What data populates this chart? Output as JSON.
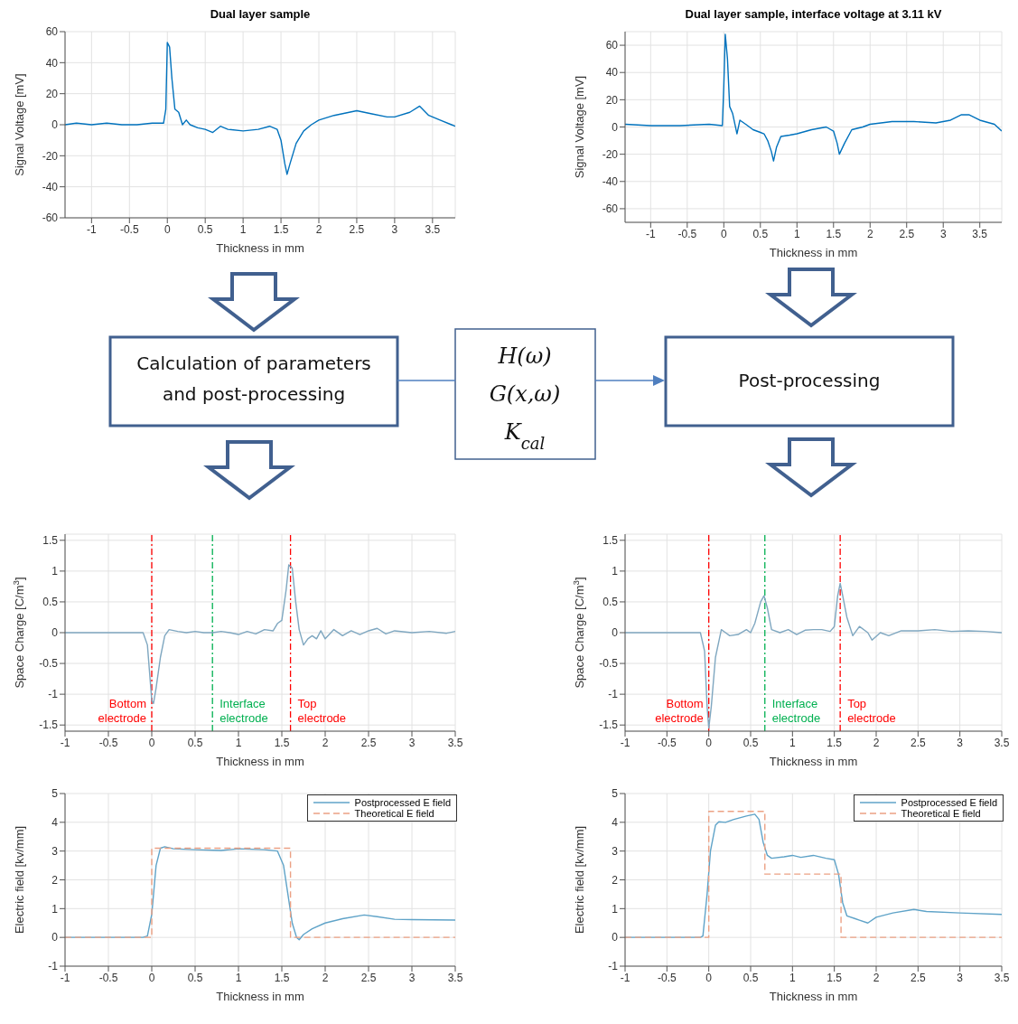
{
  "chart_data": [
    {
      "type": "line",
      "title": "Dual layer sample",
      "xlabel": "Thickness in mm",
      "ylabel": "Signal Voltage [mV]",
      "xlim": [
        -1.35,
        3.8
      ],
      "ylim": [
        -60,
        60
      ],
      "xticks": [
        -1,
        -0.5,
        0,
        0.5,
        1,
        1.5,
        2,
        2.5,
        3,
        3.5
      ],
      "yticks": [
        -60,
        -40,
        -20,
        0,
        20,
        40,
        60
      ],
      "grid": true,
      "x": [
        -1.35,
        -1.2,
        -1.0,
        -0.8,
        -0.6,
        -0.4,
        -0.2,
        -0.05,
        -0.02,
        0,
        0.03,
        0.06,
        0.1,
        0.15,
        0.2,
        0.25,
        0.3,
        0.4,
        0.5,
        0.6,
        0.7,
        0.8,
        1.0,
        1.2,
        1.35,
        1.45,
        1.5,
        1.55,
        1.58,
        1.62,
        1.7,
        1.8,
        1.9,
        2.0,
        2.2,
        2.5,
        2.7,
        2.9,
        3.0,
        3.2,
        3.33,
        3.45,
        3.6,
        3.75,
        3.8
      ],
      "series": [
        {
          "color": "#0072bd",
          "values": [
            0,
            1,
            0,
            1,
            0,
            0,
            1,
            1,
            10,
            53,
            50,
            30,
            10,
            8,
            0,
            3,
            0,
            -2,
            -3,
            -5,
            -1,
            -3,
            -4,
            -3,
            -1,
            -3,
            -10,
            -25,
            -32,
            -25,
            -12,
            -4,
            0,
            3,
            6,
            9,
            7,
            5,
            5,
            8,
            12,
            6,
            3,
            0,
            -1
          ]
        }
      ]
    },
    {
      "type": "line",
      "title": "Dual layer sample, interface voltage at 3.11 kV",
      "xlabel": "Thickness in mm",
      "ylabel": "Signal Voltage [mV]",
      "xlim": [
        -1.35,
        3.8
      ],
      "ylim": [
        -70,
        70
      ],
      "xticks": [
        -1,
        -0.5,
        0,
        0.5,
        1,
        1.5,
        2,
        2.5,
        3,
        3.5
      ],
      "yticks": [
        -60,
        -40,
        -20,
        0,
        20,
        40,
        60
      ],
      "grid": true,
      "x": [
        -1.35,
        -1.0,
        -0.6,
        -0.2,
        -0.02,
        0,
        0.02,
        0.05,
        0.08,
        0.12,
        0.18,
        0.22,
        0.3,
        0.4,
        0.5,
        0.55,
        0.6,
        0.65,
        0.68,
        0.72,
        0.78,
        0.9,
        1.0,
        1.2,
        1.4,
        1.5,
        1.55,
        1.58,
        1.65,
        1.75,
        1.9,
        2.0,
        2.3,
        2.6,
        2.9,
        3.1,
        3.25,
        3.35,
        3.5,
        3.7,
        3.8
      ],
      "series": [
        {
          "color": "#0072bd",
          "values": [
            2,
            1,
            1,
            2,
            1,
            30,
            68,
            50,
            15,
            10,
            -5,
            5,
            2,
            -2,
            -4,
            -5,
            -10,
            -18,
            -25,
            -15,
            -7,
            -6,
            -5,
            -2,
            0,
            -3,
            -12,
            -20,
            -12,
            -2,
            0,
            2,
            4,
            4,
            3,
            5,
            9,
            9,
            5,
            2,
            -3
          ]
        }
      ]
    },
    {
      "type": "other",
      "annotations": [
        "Calculation of parameters and post-processing",
        "H(ω)",
        "G(x,ω)",
        "K$_{cal}$",
        "Post-processing"
      ]
    },
    {
      "type": "line",
      "xlabel": "Thickness in mm",
      "ylabel": "Space Charge [C/m$^{3}$]",
      "xlim": [
        -1,
        3.5
      ],
      "ylim": [
        -1.6,
        1.6
      ],
      "xticks": [
        -1,
        -0.5,
        0,
        0.5,
        1,
        1.5,
        2,
        2.5,
        3,
        3.5
      ],
      "yticks": [
        -1.5,
        -1,
        -0.5,
        0,
        0.5,
        1,
        1.5
      ],
      "grid": true,
      "x": [
        -1,
        -0.1,
        -0.05,
        0,
        0.02,
        0.05,
        0.1,
        0.15,
        0.2,
        0.3,
        0.4,
        0.5,
        0.6,
        0.7,
        0.8,
        0.9,
        1.0,
        1.1,
        1.2,
        1.3,
        1.4,
        1.45,
        1.5,
        1.55,
        1.58,
        1.62,
        1.66,
        1.7,
        1.75,
        1.8,
        1.85,
        1.9,
        1.95,
        2.0,
        2.1,
        2.2,
        2.3,
        2.4,
        2.5,
        2.6,
        2.7,
        2.8,
        3.0,
        3.2,
        3.4,
        3.5
      ],
      "series": [
        {
          "color": "#7fa7c0",
          "values": [
            0,
            0,
            -0.2,
            -1.1,
            -1.15,
            -0.9,
            -0.4,
            -0.05,
            0.05,
            0.02,
            0,
            0.02,
            0,
            0,
            0.02,
            0,
            -0.03,
            0.02,
            -0.02,
            0.05,
            0.03,
            0.15,
            0.2,
            0.7,
            1.1,
            1.05,
            0.5,
            0.05,
            -0.2,
            -0.1,
            -0.05,
            -0.1,
            0.03,
            -0.1,
            0.05,
            -0.05,
            0.03,
            -0.03,
            0.03,
            0.07,
            -0.02,
            0.03,
            0,
            0.02,
            -0.01,
            0.02
          ]
        }
      ],
      "ref_lines": [
        {
          "axis": "x",
          "value": 0,
          "label": "Bottom electrode",
          "color": "#ff0000"
        },
        {
          "axis": "x",
          "value": 0.7,
          "label": "Interface electrode",
          "color": "#00b050"
        },
        {
          "axis": "x",
          "value": 1.6,
          "label": "Top electrode",
          "color": "#ff0000"
        }
      ]
    },
    {
      "type": "line",
      "xlabel": "Thickness in mm",
      "ylabel": "Space Charge [C/m$^{3}$]",
      "xlim": [
        -1,
        3.5
      ],
      "ylim": [
        -1.6,
        1.6
      ],
      "xticks": [
        -1,
        -0.5,
        0,
        0.5,
        1,
        1.5,
        2,
        2.5,
        3,
        3.5
      ],
      "yticks": [
        -1.5,
        -1,
        -0.5,
        0,
        0.5,
        1,
        1.5
      ],
      "grid": true,
      "x": [
        -1,
        -0.1,
        -0.05,
        -0.02,
        0,
        0.03,
        0.08,
        0.15,
        0.2,
        0.25,
        0.35,
        0.45,
        0.5,
        0.55,
        0.62,
        0.66,
        0.7,
        0.75,
        0.85,
        0.95,
        1.05,
        1.15,
        1.25,
        1.35,
        1.45,
        1.5,
        1.54,
        1.57,
        1.6,
        1.65,
        1.72,
        1.8,
        1.9,
        1.95,
        2.05,
        2.15,
        2.3,
        2.5,
        2.7,
        2.9,
        3.1,
        3.3,
        3.5
      ],
      "series": [
        {
          "color": "#7fa7c0",
          "values": [
            0,
            0,
            -0.3,
            -1.2,
            -1.55,
            -1.2,
            -0.4,
            0.05,
            0,
            -0.05,
            -0.03,
            0.05,
            0,
            0.15,
            0.5,
            0.6,
            0.4,
            0.05,
            0,
            0.05,
            -0.03,
            0.04,
            0.05,
            0.05,
            0.02,
            0.1,
            0.6,
            0.8,
            0.6,
            0.25,
            -0.05,
            0.1,
            0,
            -0.12,
            0,
            -0.05,
            0.03,
            0.03,
            0.05,
            0.02,
            0.03,
            0.02,
            0
          ]
        }
      ],
      "ref_lines": [
        {
          "axis": "x",
          "value": 0,
          "label": "Bottom electrode",
          "color": "#ff0000"
        },
        {
          "axis": "x",
          "value": 0.67,
          "label": "Interface electrode",
          "color": "#00b050"
        },
        {
          "axis": "x",
          "value": 1.57,
          "label": "Top electrode",
          "color": "#ff0000"
        }
      ]
    },
    {
      "type": "line",
      "xlabel": "Thickness in mm",
      "ylabel": "Electric field [kv/mm]",
      "xlim": [
        -1,
        3.5
      ],
      "ylim": [
        -1,
        5
      ],
      "xticks": [
        -1,
        -0.5,
        0,
        0.5,
        1,
        1.5,
        2,
        2.5,
        3,
        3.5
      ],
      "yticks": [
        -1,
        0,
        1,
        2,
        3,
        4,
        5
      ],
      "grid": true,
      "legend": "top right",
      "series": [
        {
          "name": "Postprocessed E field",
          "color": "#5fa3c8",
          "line_style": "solid",
          "x": [
            -1,
            -0.1,
            -0.05,
            0,
            0.05,
            0.1,
            0.15,
            0.25,
            0.5,
            0.8,
            1.0,
            1.3,
            1.45,
            1.52,
            1.57,
            1.62,
            1.67,
            1.7,
            1.75,
            1.85,
            2.0,
            2.2,
            2.45,
            2.6,
            2.8,
            3.0,
            3.5
          ],
          "values": [
            0,
            0,
            0.05,
            0.8,
            2.5,
            3.1,
            3.15,
            3.08,
            3.05,
            3.02,
            3.08,
            3.05,
            3.0,
            2.5,
            1.5,
            0.5,
            0,
            -0.08,
            0.1,
            0.3,
            0.5,
            0.65,
            0.78,
            0.72,
            0.63,
            0.62,
            0.6
          ]
        },
        {
          "name": "Theoretical E field",
          "color": "#eca184",
          "line_style": "dashed",
          "x": [
            -1,
            0,
            0,
            1.6,
            1.6,
            3.5
          ],
          "values": [
            0,
            0,
            3.1,
            3.1,
            0,
            0
          ]
        }
      ]
    },
    {
      "type": "line",
      "xlabel": "Thickness in mm",
      "ylabel": "Electric field [kv/mm]",
      "xlim": [
        -1,
        3.5
      ],
      "ylim": [
        -1,
        5
      ],
      "xticks": [
        -1,
        -0.5,
        0,
        0.5,
        1,
        1.5,
        2,
        2.5,
        3,
        3.5
      ],
      "yticks": [
        -1,
        0,
        1,
        2,
        3,
        4,
        5
      ],
      "grid": true,
      "legend": "top right",
      "series": [
        {
          "name": "Postprocessed E field",
          "color": "#5fa3c8",
          "line_style": "solid",
          "x": [
            -1,
            -0.1,
            -0.07,
            -0.02,
            0.02,
            0.08,
            0.12,
            0.2,
            0.3,
            0.45,
            0.55,
            0.6,
            0.65,
            0.7,
            0.75,
            0.9,
            1.0,
            1.1,
            1.25,
            1.4,
            1.5,
            1.55,
            1.6,
            1.65,
            1.75,
            1.8,
            1.9,
            2.0,
            2.2,
            2.45,
            2.6,
            3.0,
            3.5
          ],
          "values": [
            0,
            0,
            0.05,
            1.5,
            3,
            3.9,
            4.02,
            4.0,
            4.1,
            4.22,
            4.28,
            4.1,
            3.3,
            2.85,
            2.75,
            2.8,
            2.85,
            2.78,
            2.85,
            2.75,
            2.7,
            2.2,
            1.2,
            0.75,
            0.65,
            0.6,
            0.5,
            0.7,
            0.85,
            0.97,
            0.9,
            0.85,
            0.8
          ]
        },
        {
          "name": "Theoretical E field",
          "color": "#eca184",
          "line_style": "dashed",
          "x": [
            -1,
            0,
            0,
            0.67,
            0.67,
            1.58,
            1.58,
            3.5
          ],
          "values": [
            0,
            0,
            4.38,
            4.38,
            2.2,
            2.2,
            0,
            0
          ]
        }
      ]
    }
  ]
}
